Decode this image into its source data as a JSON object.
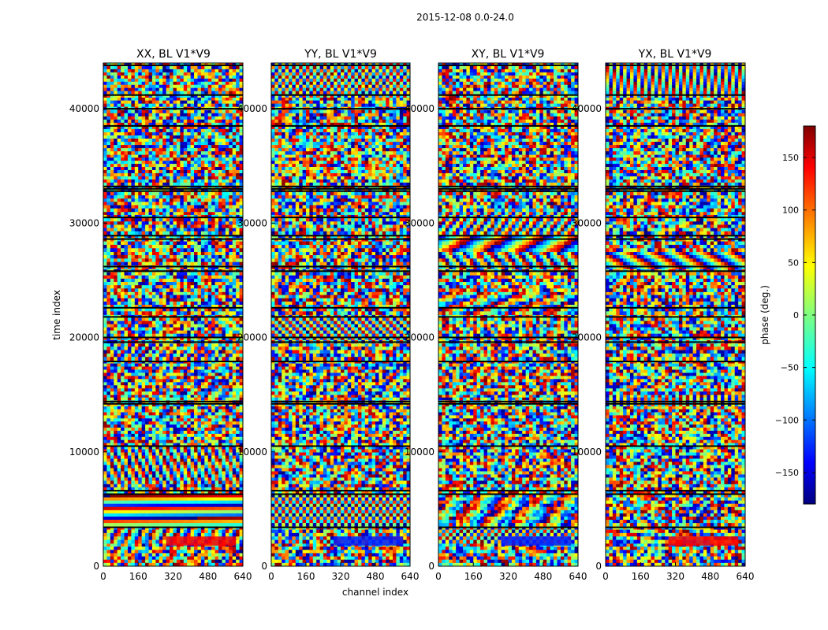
{
  "chart_data": {
    "type": "heatmap",
    "suptitle": "2015-12-08 0.0-24.0",
    "xlabel": "channel index",
    "ylabel": "time index",
    "xlim": [
      0,
      640
    ],
    "ylim": [
      0,
      44000
    ],
    "xticks": [
      0,
      160,
      320,
      480,
      640
    ],
    "xtick_labels": [
      "0",
      "160",
      "320",
      "480",
      "640"
    ],
    "yticks": [
      0,
      10000,
      20000,
      30000,
      40000
    ],
    "ytick_labels": [
      "0",
      "10000",
      "20000",
      "30000",
      "40000"
    ],
    "panels": [
      {
        "title": "XX, BL V1*V9"
      },
      {
        "title": "YY, BL V1*V9"
      },
      {
        "title": "XY, BL V1*V9"
      },
      {
        "title": "YX, BL V1*V9"
      }
    ],
    "colorbar": {
      "label": "phase (deg.)",
      "colormap": "jet",
      "vmin": -180,
      "vmax": 180,
      "ticks": [
        -150,
        -100,
        -50,
        0,
        50,
        100,
        150
      ],
      "tick_labels": [
        "−150",
        "−100",
        "−50",
        "0",
        "50",
        "100",
        "150"
      ]
    },
    "colors": {
      "jet_dark_blue": "#00007f",
      "jet_blue": "#0000ff",
      "jet_cyan": "#00ffff",
      "jet_green": "#7fff7f",
      "jet_yellow": "#ffff00",
      "jet_red": "#ff0000",
      "jet_dark_red": "#7f0000",
      "band_separator": "#000000"
    },
    "block_boundaries": [
      0,
      2000,
      3500,
      6300,
      7200,
      10500,
      14000,
      15000,
      18000,
      19500,
      22000,
      24000,
      26000,
      27500,
      29000,
      31000,
      33000,
      36000,
      38500,
      41000,
      44000
    ],
    "separator_rows": [
      3400,
      6300,
      6600,
      10500,
      14200,
      14400,
      17900,
      19600,
      20000,
      21800,
      22600,
      25800,
      26200,
      28600,
      28900,
      30500,
      32800,
      33000,
      33200,
      38500,
      40000,
      41200,
      43800
    ]
  }
}
